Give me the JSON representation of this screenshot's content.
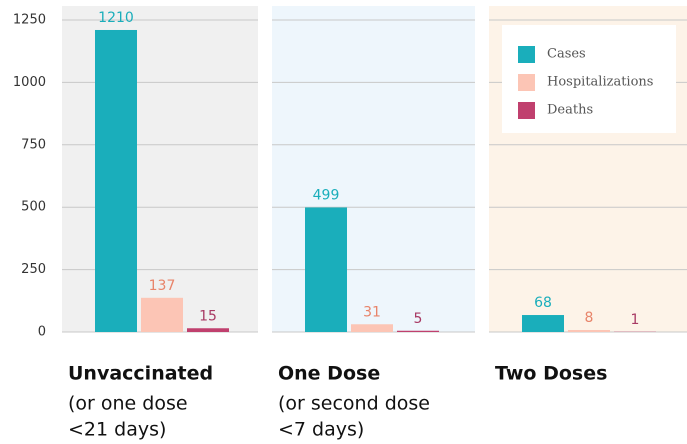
{
  "chart_data": {
    "type": "bar",
    "categories": [
      "Unvaccinated",
      "One Dose",
      "Two Doses"
    ],
    "category_notes": [
      [
        "(or one dose",
        "<21 days)"
      ],
      [
        "(or second dose",
        "<7 days)"
      ],
      []
    ],
    "panel_colors": [
      "#f0f0f0",
      "#eef6fc",
      "#fdf3e8"
    ],
    "series": [
      {
        "name": "Cases",
        "color": "#1aaebb",
        "label_color": "#1aaebb",
        "values": [
          1210,
          499,
          68
        ]
      },
      {
        "name": "Hospitalizations",
        "color": "#fcc5b5",
        "label_color": "#e8846a",
        "values": [
          137,
          31,
          8
        ]
      },
      {
        "name": "Deaths",
        "color": "#c0406e",
        "label_color": "#a83a64",
        "values": [
          15,
          5,
          1
        ]
      }
    ],
    "ylim": [
      0,
      1250
    ],
    "yticks": [
      0,
      250,
      500,
      750,
      1000,
      1250
    ],
    "grid": true,
    "legend": "top-right"
  }
}
